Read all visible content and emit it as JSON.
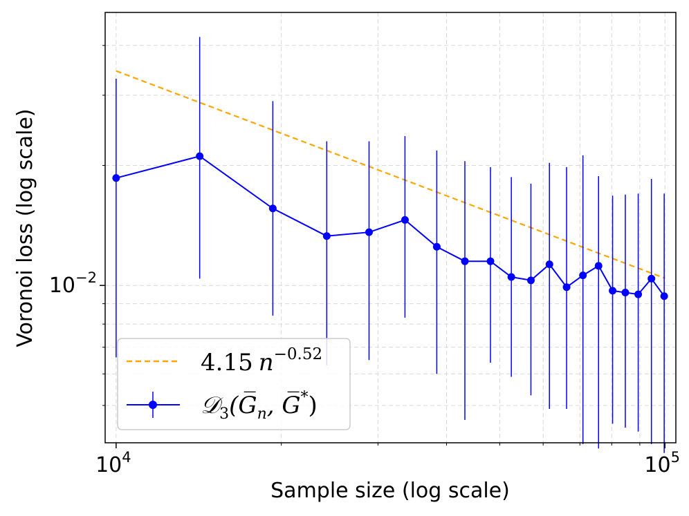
{
  "chart_data": {
    "type": "line",
    "xlabel": "Sample size (log scale)",
    "ylabel": "Voronoi loss (log scale)",
    "xscale": "log",
    "yscale": "log",
    "xlim": [
      9550,
      104700
    ],
    "ylim": [
      0.00403,
      0.0484
    ],
    "grid": true,
    "legend_position": "lower-left",
    "x_ticks": [
      {
        "value": 10000,
        "base": "10",
        "exp": "4"
      },
      {
        "value": 100000,
        "base": "10",
        "exp": "5"
      }
    ],
    "y_ticks": [
      {
        "value": 0.01,
        "base": "10",
        "exp": "−2"
      }
    ],
    "series": [
      {
        "name": "4.15 n^-0.52",
        "legend_coef": "4.15",
        "legend_var": "n",
        "legend_exp": "−0.52",
        "kind": "fit",
        "style": "dashed",
        "color": "#ffa500",
        "coef": 4.15,
        "exponent": -0.52,
        "x_range": [
          10000,
          100000
        ]
      },
      {
        "name": "D3(Gn, G*)",
        "legend_script": "𝒟",
        "legend_sub": "3",
        "legend_args": "(G̅",
        "legend_n": "n",
        "legend_rest": ", G̅",
        "legend_star": "*",
        "legend_close": ")",
        "kind": "data",
        "style": "solid-marker-errorbar",
        "color": "#0000ff",
        "x": [
          10000,
          14200,
          19300,
          24200,
          28900,
          33600,
          38400,
          43200,
          48100,
          52500,
          57000,
          61600,
          66200,
          70900,
          75700,
          80300,
          84700,
          89400,
          94500,
          99700
        ],
        "y": [
          0.0186,
          0.0211,
          0.0156,
          0.0133,
          0.0136,
          0.0146,
          0.0125,
          0.0115,
          0.0115,
          0.0105,
          0.0103,
          0.0113,
          0.0099,
          0.0106,
          0.0112,
          0.0097,
          0.0096,
          0.0095,
          0.0104,
          0.0094
        ],
        "y_lower": [
          0.0066,
          0.0104,
          0.0084,
          0.0063,
          0.0065,
          0.0083,
          0.006,
          0.0046,
          0.0064,
          0.0059,
          0.0053,
          0.0049,
          0.0049,
          0.004,
          0.0039,
          0.0045,
          0.0044,
          0.0043,
          0.004,
          0.0038
        ],
        "y_upper": [
          0.033,
          0.042,
          0.029,
          0.023,
          0.023,
          0.0237,
          0.0218,
          0.0205,
          0.0198,
          0.0187,
          0.018,
          0.0203,
          0.0198,
          0.0212,
          0.0188,
          0.0168,
          0.0169,
          0.017,
          0.0185,
          0.017
        ]
      }
    ]
  }
}
